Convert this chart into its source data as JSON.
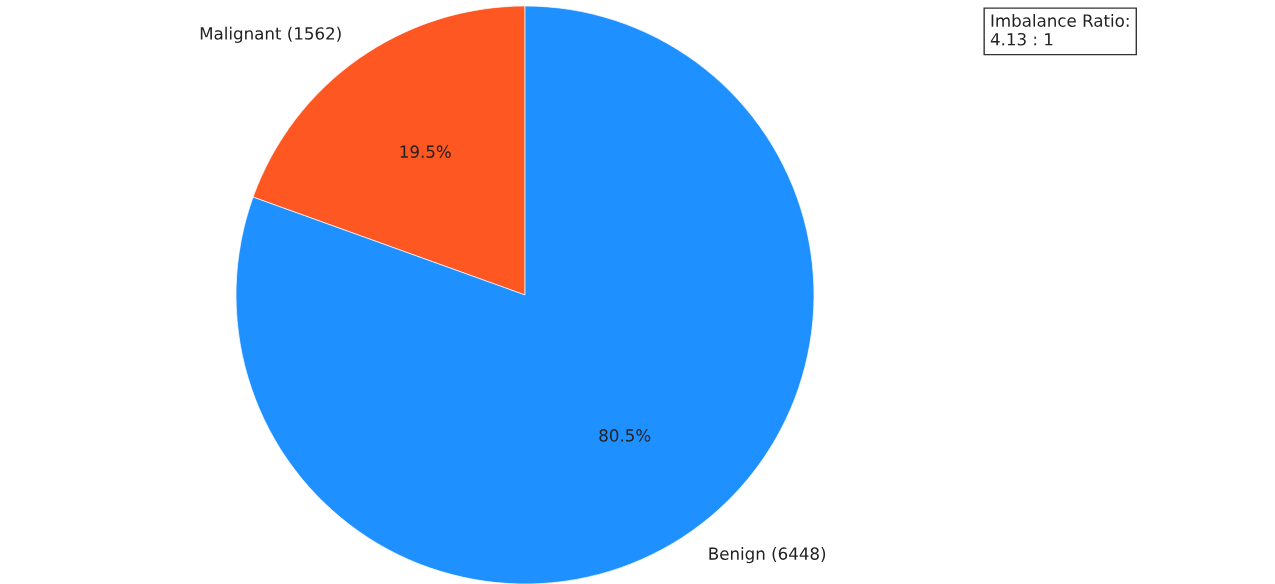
{
  "chart_data": {
    "type": "pie",
    "categories": [
      "Malignant (1562)",
      "Benign (6448)"
    ],
    "values": [
      19.5,
      80.5
    ],
    "value_labels": [
      "19.5%",
      "80.5%"
    ],
    "colors": [
      "#ff5722",
      "#1e90ff"
    ],
    "annotations": [
      "Imbalance Ratio:\n4.13 : 1"
    ]
  }
}
